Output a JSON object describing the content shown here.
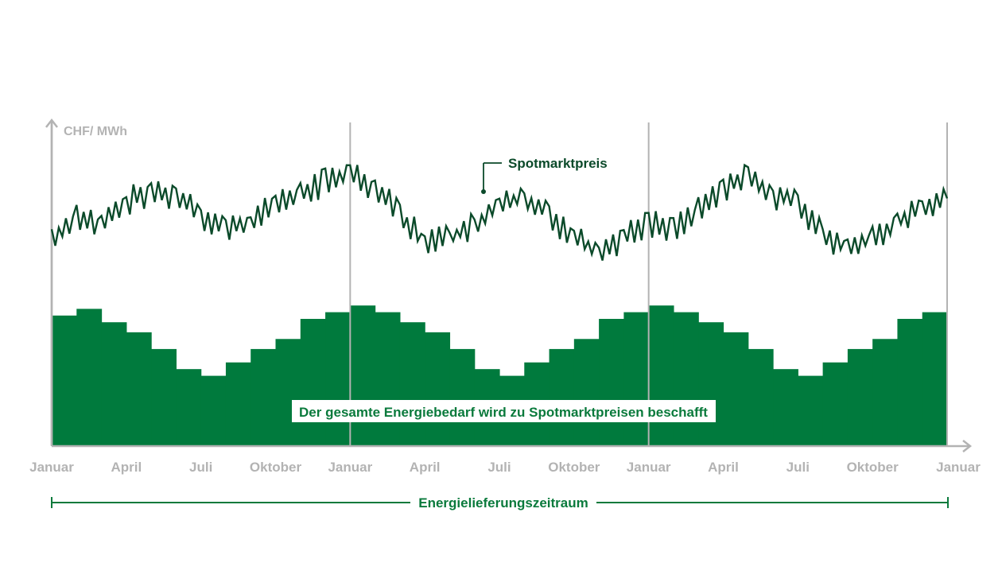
{
  "colors": {
    "demand_fill": "#007a3d",
    "price_line": "#0b4a2a",
    "axis": "#b3b3b3",
    "period_line": "#0a7a3c",
    "background": "#ffffff"
  },
  "chart_data": {
    "type": "area",
    "ylabel": "CHF/ MWh",
    "x_ticks": [
      "Januar",
      "April",
      "Juli",
      "Oktober",
      "Januar",
      "April",
      "Juli",
      "Oktober",
      "Januar",
      "April",
      "Juli",
      "Oktober",
      "Januar"
    ],
    "year_boundaries": [
      0,
      12,
      24,
      36
    ],
    "grid": false,
    "ylim": [
      0,
      100
    ],
    "series": [
      {
        "name": "Spotmarktpreis",
        "type": "line",
        "monthly_values": [
          62,
          68,
          66,
          73,
          76,
          75,
          69,
          65,
          67,
          72,
          75,
          79,
          82,
          77,
          69,
          61,
          62,
          66,
          72,
          74,
          69,
          62,
          58,
          62,
          67,
          64,
          70,
          77,
          80,
          75,
          73,
          63,
          59,
          62,
          67,
          71,
          74
        ]
      },
      {
        "name": "Energiebedarf",
        "type": "step",
        "monthly_values": [
          39,
          41,
          37,
          34,
          29,
          23,
          21,
          25,
          29,
          32,
          38,
          40,
          42,
          40,
          37,
          34,
          29,
          23,
          21,
          25,
          29,
          32,
          38,
          40,
          42,
          40,
          37,
          34,
          29,
          23,
          21,
          25,
          29,
          32,
          38,
          40
        ]
      }
    ],
    "annotations": {
      "spot_label": "Spotmarktpreis",
      "procurement_note": "Der gesamte Energiebedarf wird zu Spotmarktpreisen beschafft",
      "delivery_period": "Energielieferungszeitraum"
    }
  }
}
